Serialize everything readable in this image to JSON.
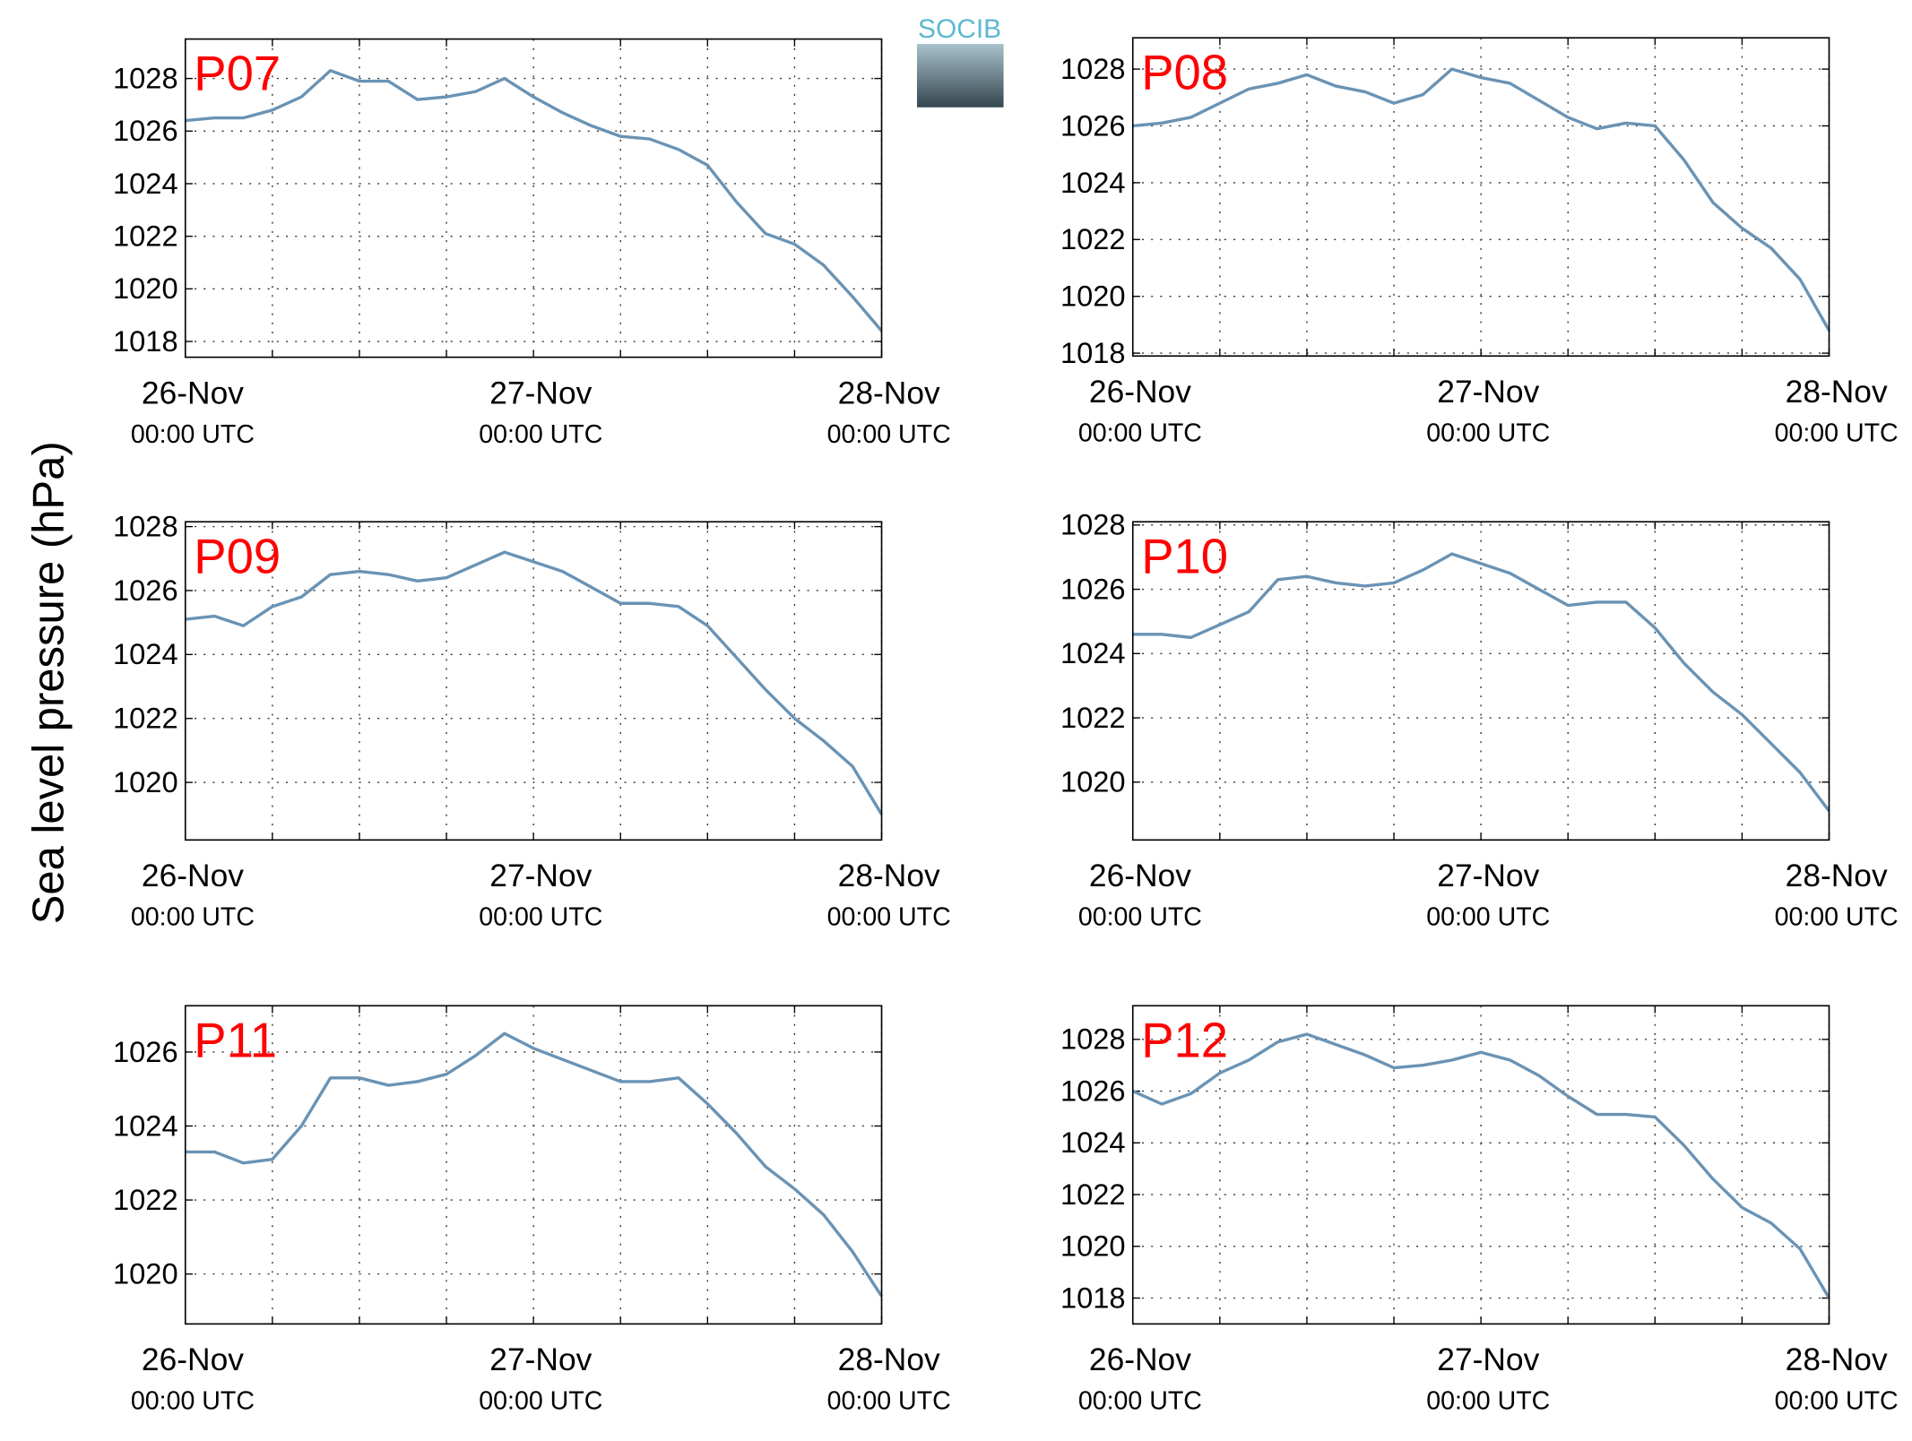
{
  "ylabel": "Sea level pressure (hPa)",
  "logo": "SOCIB",
  "chart_data": [
    {
      "type": "line",
      "title": "P07",
      "color": "#6a93b4",
      "grid": true,
      "x": [
        0,
        2,
        4,
        6,
        8,
        10,
        12,
        14,
        16,
        18,
        20,
        22,
        24,
        26,
        28,
        30,
        32,
        34,
        36,
        38,
        40,
        42,
        44,
        46,
        48
      ],
      "values": [
        1026.4,
        1026.5,
        1026.5,
        1026.8,
        1027.3,
        1028.3,
        1027.9,
        1027.9,
        1027.2,
        1027.3,
        1027.5,
        1028.0,
        1027.3,
        1026.7,
        1026.2,
        1025.8,
        1025.7,
        1025.3,
        1024.7,
        1023.3,
        1022.1,
        1021.7,
        1020.9,
        1019.7,
        1018.4
      ],
      "xlim": [
        0,
        48
      ],
      "xticks": [
        {
          "value": 0,
          "label": "26-Nov"
        },
        {
          "value": 24,
          "label": "27-Nov"
        },
        {
          "value": 48,
          "label": "28-Nov"
        }
      ],
      "xtick_sublabel": "00:00 UTC",
      "xminor_ticks": [
        6,
        12,
        18,
        30,
        36,
        42
      ],
      "ylim": [
        1017.4,
        1029.5
      ],
      "yticks": [
        1018,
        1020,
        1022,
        1024,
        1026,
        1028
      ]
    },
    {
      "type": "line",
      "title": "P08",
      "color": "#6a93b4",
      "grid": true,
      "x": [
        0,
        2,
        4,
        6,
        8,
        10,
        12,
        14,
        16,
        18,
        20,
        22,
        24,
        26,
        28,
        30,
        32,
        34,
        36,
        38,
        40,
        42,
        44,
        46,
        48
      ],
      "values": [
        1026.0,
        1026.1,
        1026.3,
        1026.8,
        1027.3,
        1027.5,
        1027.8,
        1027.4,
        1027.2,
        1026.8,
        1027.1,
        1028.0,
        1027.7,
        1027.5,
        1026.9,
        1026.3,
        1025.9,
        1026.1,
        1026.0,
        1024.8,
        1023.3,
        1022.4,
        1021.7,
        1020.6,
        1018.8
      ],
      "xlim": [
        0,
        48
      ],
      "xticks": [
        {
          "value": 0,
          "label": "26-Nov"
        },
        {
          "value": 24,
          "label": "27-Nov"
        },
        {
          "value": 48,
          "label": "28-Nov"
        }
      ],
      "xtick_sublabel": "00:00 UTC",
      "xminor_ticks": [
        6,
        12,
        18,
        30,
        36,
        42
      ],
      "ylim": [
        1017.9,
        1029.1
      ],
      "yticks": [
        1018,
        1020,
        1022,
        1024,
        1026,
        1028
      ]
    },
    {
      "type": "line",
      "title": "P09",
      "color": "#6a93b4",
      "grid": true,
      "x": [
        0,
        2,
        4,
        6,
        8,
        10,
        12,
        14,
        16,
        18,
        20,
        22,
        24,
        26,
        28,
        30,
        32,
        34,
        36,
        38,
        40,
        42,
        44,
        46,
        48
      ],
      "values": [
        1025.1,
        1025.2,
        1024.9,
        1025.5,
        1025.8,
        1026.5,
        1026.6,
        1026.5,
        1026.3,
        1026.4,
        1026.8,
        1027.2,
        1026.9,
        1026.6,
        1026.1,
        1025.6,
        1025.6,
        1025.5,
        1024.9,
        1023.9,
        1022.9,
        1022.0,
        1021.3,
        1020.5,
        1019.0
      ],
      "xlim": [
        0,
        48
      ],
      "xticks": [
        {
          "value": 0,
          "label": "26-Nov"
        },
        {
          "value": 24,
          "label": "27-Nov"
        },
        {
          "value": 48,
          "label": "28-Nov"
        }
      ],
      "xtick_sublabel": "00:00 UTC",
      "xminor_ticks": [
        6,
        12,
        18,
        30,
        36,
        42
      ],
      "ylim": [
        1018.2,
        1028.15
      ],
      "yticks": [
        1020,
        1022,
        1024,
        1026,
        1028
      ]
    },
    {
      "type": "line",
      "title": "P10",
      "color": "#6a93b4",
      "grid": true,
      "x": [
        0,
        2,
        4,
        6,
        8,
        10,
        12,
        14,
        16,
        18,
        20,
        22,
        24,
        26,
        28,
        30,
        32,
        34,
        36,
        38,
        40,
        42,
        44,
        46,
        48
      ],
      "values": [
        1024.6,
        1024.6,
        1024.5,
        1024.9,
        1025.3,
        1026.3,
        1026.4,
        1026.2,
        1026.1,
        1026.2,
        1026.6,
        1027.1,
        1026.8,
        1026.5,
        1026.0,
        1025.5,
        1025.6,
        1025.6,
        1024.8,
        1023.7,
        1022.8,
        1022.1,
        1021.2,
        1020.3,
        1019.1
      ],
      "xlim": [
        0,
        48
      ],
      "xticks": [
        {
          "value": 0,
          "label": "26-Nov"
        },
        {
          "value": 24,
          "label": "27-Nov"
        },
        {
          "value": 48,
          "label": "28-Nov"
        }
      ],
      "xtick_sublabel": "00:00 UTC",
      "xminor_ticks": [
        6,
        12,
        18,
        30,
        36,
        42
      ],
      "ylim": [
        1018.2,
        1028.1
      ],
      "yticks": [
        1020,
        1022,
        1024,
        1026,
        1028
      ]
    },
    {
      "type": "line",
      "title": "P11",
      "color": "#6a93b4",
      "grid": true,
      "x": [
        0,
        2,
        4,
        6,
        8,
        10,
        12,
        14,
        16,
        18,
        20,
        22,
        24,
        26,
        28,
        30,
        32,
        34,
        36,
        38,
        40,
        42,
        44,
        46,
        48
      ],
      "values": [
        1023.3,
        1023.3,
        1023.0,
        1023.1,
        1024.0,
        1025.3,
        1025.3,
        1025.1,
        1025.2,
        1025.4,
        1025.9,
        1026.5,
        1026.1,
        1025.8,
        1025.5,
        1025.2,
        1025.2,
        1025.3,
        1024.6,
        1023.8,
        1022.9,
        1022.3,
        1021.6,
        1020.6,
        1019.4
      ],
      "xlim": [
        0,
        48
      ],
      "xticks": [
        {
          "value": 0,
          "label": "26-Nov"
        },
        {
          "value": 24,
          "label": "27-Nov"
        },
        {
          "value": 48,
          "label": "28-Nov"
        }
      ],
      "xtick_sublabel": "00:00 UTC",
      "xminor_ticks": [
        6,
        12,
        18,
        30,
        36,
        42
      ],
      "ylim": [
        1018.65,
        1027.25
      ],
      "yticks": [
        1020,
        1022,
        1024,
        1026
      ]
    },
    {
      "type": "line",
      "title": "P12",
      "color": "#6a93b4",
      "grid": true,
      "x": [
        0,
        2,
        4,
        6,
        8,
        10,
        12,
        14,
        16,
        18,
        20,
        22,
        24,
        26,
        28,
        30,
        32,
        34,
        36,
        38,
        40,
        42,
        44,
        46,
        48
      ],
      "values": [
        1026.0,
        1025.5,
        1025.9,
        1026.7,
        1027.2,
        1027.9,
        1028.2,
        1027.8,
        1027.4,
        1026.9,
        1027.0,
        1027.2,
        1027.5,
        1027.2,
        1026.6,
        1025.8,
        1025.1,
        1025.1,
        1025.0,
        1023.9,
        1022.6,
        1021.5,
        1020.9,
        1019.9,
        1018.0
      ],
      "xlim": [
        0,
        48
      ],
      "xticks": [
        {
          "value": 0,
          "label": "26-Nov"
        },
        {
          "value": 24,
          "label": "27-Nov"
        },
        {
          "value": 48,
          "label": "28-Nov"
        }
      ],
      "xtick_sublabel": "00:00 UTC",
      "xminor_ticks": [
        6,
        12,
        18,
        30,
        36,
        42
      ],
      "ylim": [
        1017.0,
        1029.3
      ],
      "yticks": [
        1018,
        1020,
        1022,
        1024,
        1026,
        1028
      ]
    }
  ]
}
